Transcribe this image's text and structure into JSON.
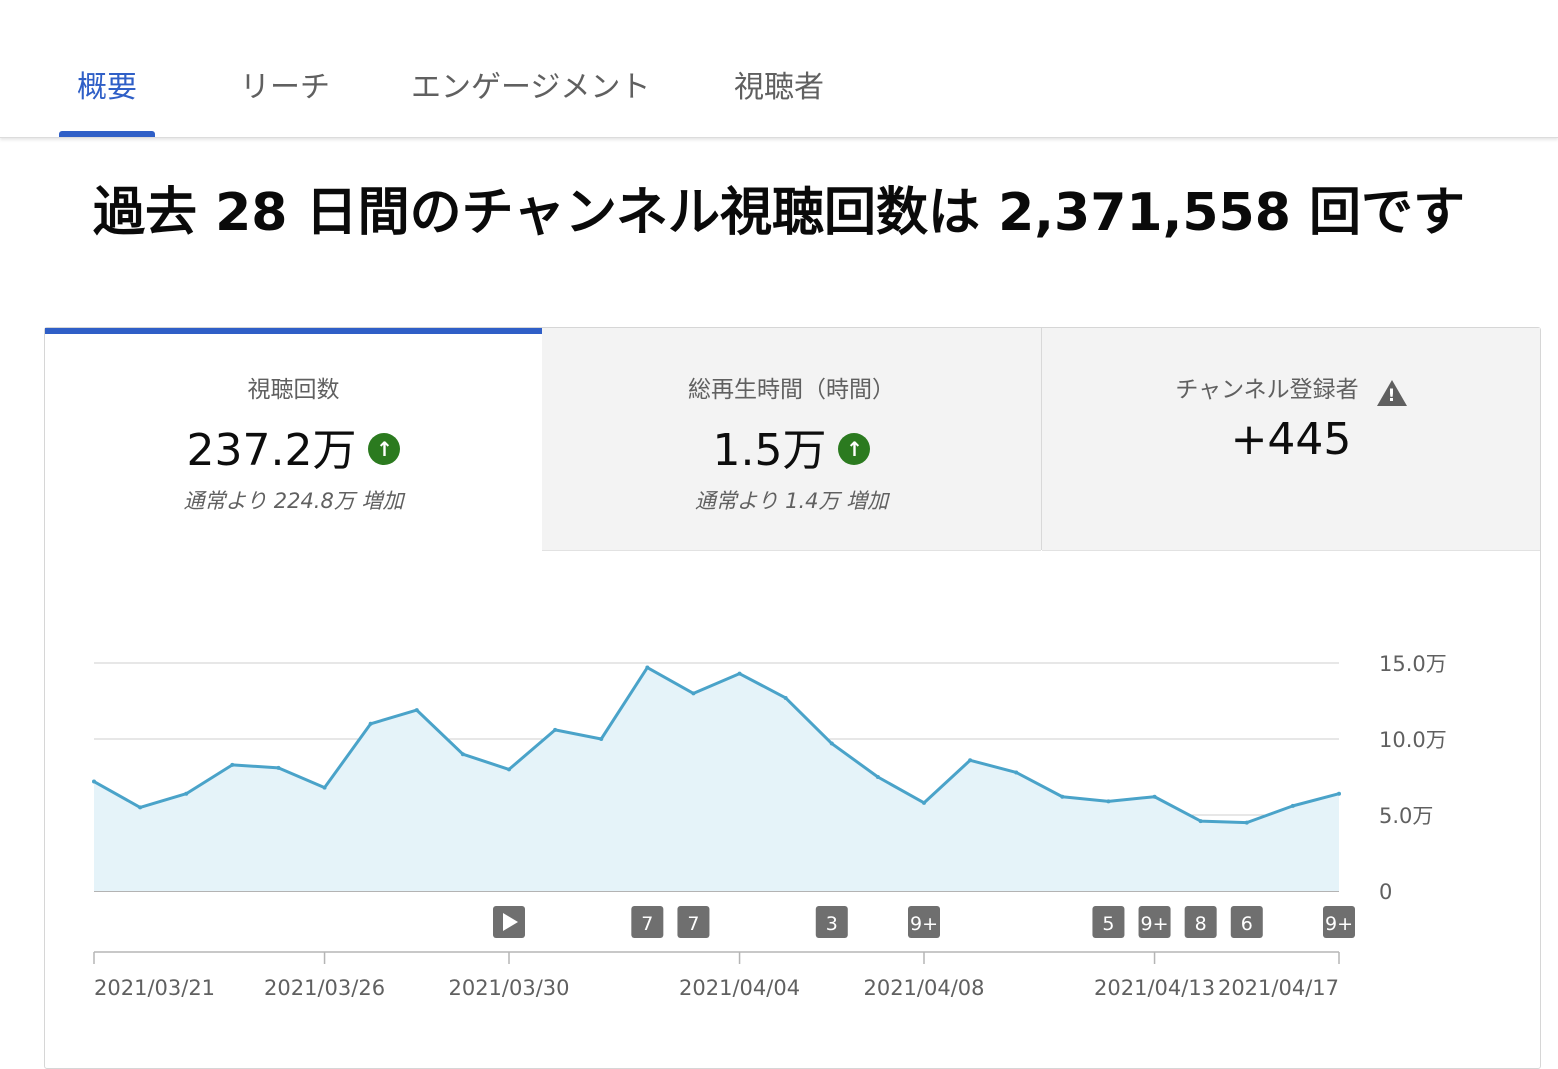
{
  "tabs": [
    {
      "label": "概要",
      "active": true
    },
    {
      "label": "リーチ",
      "active": false
    },
    {
      "label": "エンゲージメント",
      "active": false
    },
    {
      "label": "視聴者",
      "active": false
    }
  ],
  "headline": "過去 28 日間のチャンネル視聴回数は 2,371,558 回です",
  "metrics": [
    {
      "label": "視聴回数",
      "value": "237.2万",
      "trend_icon": "arrow-up-icon",
      "sub": "通常より 224.8万 増加",
      "selected": true
    },
    {
      "label": "総再生時間（時間）",
      "value": "1.5万",
      "trend_icon": "arrow-up-icon",
      "sub": "通常より 1.4万 増加",
      "selected": false
    },
    {
      "label": "チャンネル登録者",
      "value": "+445",
      "trend_icon": "warning-icon",
      "sub": "",
      "selected": false
    }
  ],
  "colors": {
    "accent": "#2f5fc7",
    "line": "#4aa3c9",
    "area": "#e5f3f9",
    "up_badge": "#2b7a1f"
  },
  "chart_data": {
    "type": "area",
    "x": [
      "2021/03/21",
      "2021/03/22",
      "2021/03/23",
      "2021/03/24",
      "2021/03/25",
      "2021/03/26",
      "2021/03/27",
      "2021/03/28",
      "2021/03/29",
      "2021/03/30",
      "2021/03/31",
      "2021/04/01",
      "2021/04/02",
      "2021/04/03",
      "2021/04/04",
      "2021/04/05",
      "2021/04/06",
      "2021/04/07",
      "2021/04/08",
      "2021/04/09",
      "2021/04/10",
      "2021/04/11",
      "2021/04/12",
      "2021/04/13",
      "2021/04/14",
      "2021/04/15",
      "2021/04/16",
      "2021/04/17"
    ],
    "values": [
      72000,
      55000,
      64000,
      83000,
      81000,
      68000,
      110000,
      119000,
      90000,
      80000,
      106000,
      100000,
      147000,
      130000,
      143000,
      127000,
      97000,
      75000,
      58000,
      86000,
      78000,
      62000,
      59000,
      62000,
      46000,
      45000,
      56000,
      64000
    ],
    "ylim": [
      0,
      150000
    ],
    "y_ticks": [
      {
        "value": 0,
        "label": "0"
      },
      {
        "value": 50000,
        "label": "5.0万"
      },
      {
        "value": 100000,
        "label": "10.0万"
      },
      {
        "value": 150000,
        "label": "15.0万"
      }
    ],
    "x_tick_labels": [
      {
        "date": "2021/03/21",
        "label": "2021/03/21"
      },
      {
        "date": "2021/03/26",
        "label": "2021/03/26"
      },
      {
        "date": "2021/03/30",
        "label": "2021/03/30"
      },
      {
        "date": "2021/04/04",
        "label": "2021/04/04"
      },
      {
        "date": "2021/04/08",
        "label": "2021/04/08"
      },
      {
        "date": "2021/04/13",
        "label": "2021/04/13"
      },
      {
        "date": "2021/04/17",
        "label": "2021/04/17"
      }
    ],
    "markers": [
      {
        "date": "2021/03/30",
        "label": "",
        "icon": "play-icon"
      },
      {
        "date": "2021/04/02",
        "label": "7"
      },
      {
        "date": "2021/04/03",
        "label": "7"
      },
      {
        "date": "2021/04/06",
        "label": "3"
      },
      {
        "date": "2021/04/08",
        "label": "9+"
      },
      {
        "date": "2021/04/12",
        "label": "5"
      },
      {
        "date": "2021/04/13",
        "label": "9+"
      },
      {
        "date": "2021/04/14",
        "label": "8"
      },
      {
        "date": "2021/04/15",
        "label": "6"
      },
      {
        "date": "2021/04/17",
        "label": "9+"
      }
    ],
    "grid": true
  }
}
